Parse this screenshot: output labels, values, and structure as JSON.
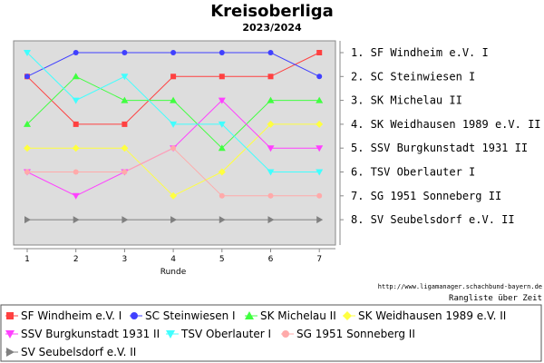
{
  "chart_data": {
    "type": "line",
    "title": "Kreisoberliga",
    "subtitle": "2023/2024",
    "xlabel": "Runde",
    "ylabel": "",
    "x": [
      1,
      2,
      3,
      4,
      5,
      6,
      7
    ],
    "ylim": [
      1,
      8
    ],
    "y_inverted": true,
    "grid": false,
    "legend_position": "bottom",
    "rank_labels": [
      "1. SF Windheim e.V. I",
      "2. SC Steinwiesen I",
      "3. SK Michelau II",
      "4. SK Weidhausen 1989 e.V. II",
      "5. SSV Burgkunstadt 1931 II",
      "6. TSV Oberlauter I",
      "7. SG 1951 Sonneberg II",
      "8. SV Seubelsdorf e.V. II"
    ],
    "series": [
      {
        "name": "SF Windheim e.V. I",
        "color": "#ff4040",
        "marker": "square",
        "values": [
          2,
          4,
          4,
          2,
          2,
          2,
          1
        ]
      },
      {
        "name": "SC Steinwiesen I",
        "color": "#4040ff",
        "marker": "circle",
        "values": [
          2,
          1,
          1,
          1,
          1,
          1,
          2
        ]
      },
      {
        "name": "SK Michelau II",
        "color": "#40ff40",
        "marker": "triangle-up",
        "values": [
          4,
          2,
          3,
          3,
          5,
          3,
          3
        ]
      },
      {
        "name": "SK Weidhausen 1989 e.V. II",
        "color": "#ffff40",
        "marker": "diamond",
        "values": [
          5,
          5,
          5,
          7,
          6,
          4,
          4
        ]
      },
      {
        "name": "SSV Burgkunstadt 1931 II",
        "color": "#ff40ff",
        "marker": "triangle-down",
        "values": [
          6,
          7,
          6,
          5,
          3,
          5,
          5
        ]
      },
      {
        "name": "TSV Oberlauter I",
        "color": "#40ffff",
        "marker": "triangle-down",
        "values": [
          1,
          3,
          2,
          4,
          4,
          6,
          6
        ]
      },
      {
        "name": "SG 1951 Sonneberg II",
        "color": "#ffaaaa",
        "marker": "circle",
        "values": [
          6,
          6,
          6,
          5,
          7,
          7,
          7
        ]
      },
      {
        "name": "SV Seubelsdorf e.V. II",
        "color": "#808080",
        "marker": "triangle-right",
        "values": [
          8,
          8,
          8,
          8,
          8,
          8,
          8
        ]
      }
    ]
  },
  "footer": {
    "credit": "http://www.ligamanager.schachbund-bayern.de",
    "caption": "Rangliste über Zeit"
  }
}
